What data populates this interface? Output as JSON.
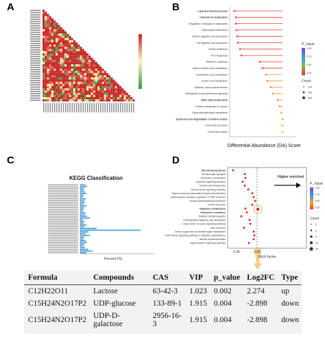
{
  "panels": {
    "a": "A",
    "b": "B",
    "c": "C",
    "d": "D"
  },
  "panel_b": {
    "xlabel": "Differential Abundance (DA) Score",
    "legend_pvalue_title": "P_Value",
    "legend_count_title": "Count",
    "pvalue_ticks": [
      "1.00",
      "0.75",
      "0.50",
      "0.25"
    ],
    "count_ticks": [
      "100",
      "200",
      "300"
    ],
    "pathways": [
      "Lipid and atherosclerosis",
      "Cholesterol metabolism",
      "Regulation of lipolysis in adipocytes",
      "Glycerolipid metabolism",
      "Vitamin digestion and absorption",
      "Fat digestion and absorption",
      "Insulin resistance",
      "Thermogenesis",
      "Metabolic pathways",
      "alpha-Linolenic acid metabolism",
      "Arachidonic acid metabolism",
      "Linoleic acid metabolism",
      "Systemic lupus erythematosus",
      "Retrograde endocannabinoid signaling",
      "Ether lipid metabolism",
      "Choline metabolism in cancer",
      "Glycerophospholipid metabolism",
      "Synthesis and degradation of ketone bodies",
      "Pancreatic secretion",
      "Pancreatic cancer"
    ]
  },
  "panel_c": {
    "title": "KEGG Classification",
    "xlabel": "Percent (%)"
  },
  "panel_d": {
    "xlabel": "Rich Factor",
    "annotation": "Higher enriched",
    "legend_pvalue_title": "P_Value",
    "legend_count_title": "Count",
    "pvalue_ticks": [
      "1.00",
      "0.75",
      "0.50",
      "0.25"
    ],
    "count_ticks": [
      "3",
      "6",
      "9",
      "12",
      "15"
    ],
    "x_ticks": [
      "0.25",
      "0.50"
    ],
    "pathways": [
      "Steroid biosynthesis",
      "Serotonergic synapse",
      "Pyrimidine metabolism",
      "Oxytocin signaling pathway",
      "Ovarian steroidogenesis",
      "Neurotrophin signaling pathway",
      "Kaposi sarcoma-associated herpesvirus infection",
      "Inflammatory mediator regulation of TRP channels",
      "Human cytomegalovirus infection",
      "GnRH secretion",
      "Galactose metabolism",
      "Endocrine resistance",
      "Diabetic cardiomyopathy",
      "Carbohydrate digestion and absorption",
      "C-type lectin receptor signaling pathway",
      "Bile secretion",
      "Amino sugar and nucleotide sugar metabolism",
      "AGE-RAGE signaling pathway in diabetic complications",
      "African trypanosomiasis",
      "Adipocytokine signaling pathway"
    ]
  },
  "table": {
    "headers": [
      "Formula",
      "Compounds",
      "CAS",
      "VIP",
      "p_value",
      "Log2FC",
      "Type"
    ],
    "rows": [
      [
        "C12H22O11",
        "Lactose",
        "63-42-3",
        "1.023",
        "0.002",
        "2.274",
        "up"
      ],
      [
        "C15H24N2O17P2",
        "UDP-glucose",
        "133-89-1",
        "1.915",
        "0.004",
        "-2.898",
        "down"
      ],
      [
        "C15H24N2O17P2",
        "UDP-D-galactose",
        "2956-16-3",
        "1.915",
        "0.004",
        "-2.898",
        "down"
      ]
    ]
  },
  "colors": {
    "heat_red": "#c62828",
    "heat_green": "#2e9e3e",
    "lollipop": "#e53935",
    "bar_blue": "#5aa7e0",
    "dot_red": "#d32f2f"
  }
}
